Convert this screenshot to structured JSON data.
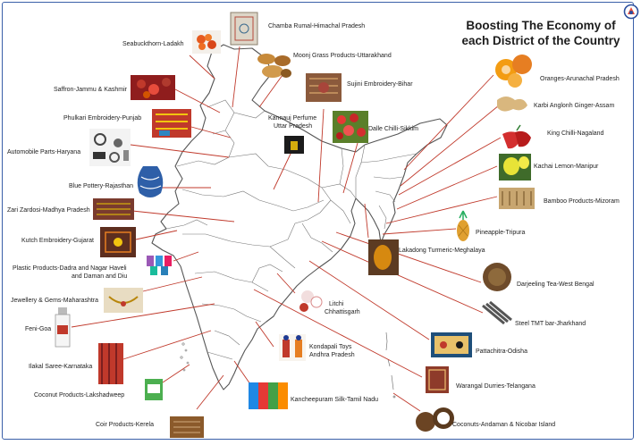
{
  "title": {
    "line1": "Boosting The Economy of",
    "line2": "each District of the Country"
  },
  "colors": {
    "frame": "#3a5fa8",
    "leader": "#c0392b",
    "map_stroke": "#555555"
  },
  "products": {
    "seabuckthorn": "Seabuckthorn-Ladakh",
    "chamba": "Chamba Rumal-Himachal Pradesh",
    "moonj": "Moonj Grass Products-Uttarakhand",
    "sujini": "Sujini Embroidery-Bihar",
    "saffron": "Saffron-Jammu & Kashmir",
    "phulkari": "Phulkari Embroidery-Punjab",
    "kannauj1": "Kannauj Perfume",
    "kannauj2": "Uttar Pradesh",
    "dalle": "Dalle Chilli-Sikkim",
    "automobile": "Automobile Parts-Haryana",
    "pottery": "Blue Pottery-Rajasthan",
    "zari": "Zari Zardosi-Madhya Pradesh",
    "kutch": "Kutch Embroidery-Gujarat",
    "plastic1": "Plastic Products-Dadra and Nagar Haveli",
    "plastic2": "and Daman and Diu",
    "jewellery": "Jewellery & Gems-Maharashtra",
    "feni": "Feni-Goa",
    "ilkal": "Ilakal Saree-Karnataka",
    "coconut_products": "Coconut Products-Lakshadweep",
    "coir": "Coir Products-Kerela",
    "oranges": "Oranges-Arunachal Pradesh",
    "ginger": "Karbi Anglonh Ginger-Assam",
    "kingchilli": "King Chilli-Nagaland",
    "kachai": "Kachai Lemon-Manipur",
    "bamboo": "Bamboo Products-Mizoram",
    "pineapple": "Pineapple-Tripura",
    "turmeric": "Lakadong Turmeric-Meghalaya",
    "tea": "Darjeeling Tea-West Bengal",
    "steel": "Steel TMT bar-Jharkhand",
    "litchi1": "Litchi",
    "litchi2": "Chhattisgarh",
    "kondapali1": "Kondapali Toys",
    "kondapali2": "Andhra Pradesh",
    "pattachitra": "Pattachitra-Odisha",
    "warangal": "Warangal Durries-Telangana",
    "kancheepuram": "Kancheepuram Silk-Tamil Nadu",
    "coconuts": "Coconuts-Andaman & Nicobar Island"
  }
}
